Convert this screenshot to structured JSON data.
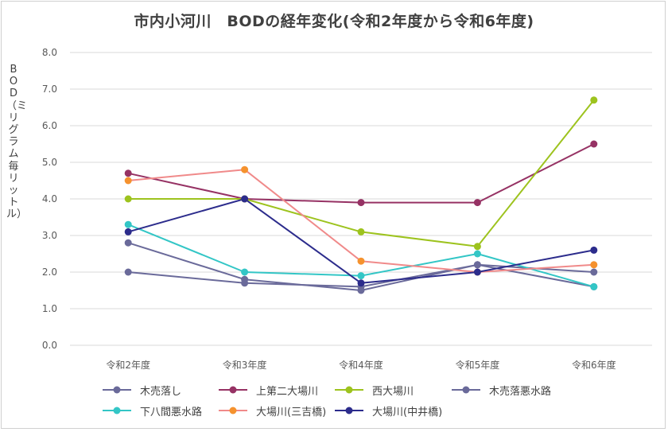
{
  "chart_data": {
    "type": "line",
    "title": "市内小河川　BODの経年変化(令和2年度から令和6年度)",
    "ylabel": "BOD（ミリグラム毎リットル）",
    "xlabel": "",
    "categories": [
      "令和2年度",
      "令和3年度",
      "令和4年度",
      "令和5年度",
      "令和6年度"
    ],
    "ylim": [
      0,
      8
    ],
    "yticks": [
      "0.0",
      "1.0",
      "2.0",
      "3.0",
      "4.0",
      "5.0",
      "6.0",
      "7.0",
      "8.0"
    ],
    "grid": true,
    "legend_position": "bottom",
    "series": [
      {
        "name": "木売落し",
        "color": "#6a6a9a",
        "values": [
          2.0,
          1.7,
          1.6,
          2.2,
          2.0
        ]
      },
      {
        "name": "上第二大場川",
        "color": "#963264",
        "values": [
          4.7,
          4.0,
          3.9,
          3.9,
          5.5
        ]
      },
      {
        "name": "西大場川",
        "color": "#9dc31e",
        "values": [
          4.0,
          4.0,
          3.1,
          2.7,
          6.7
        ]
      },
      {
        "name": "木売落悪水路",
        "color": "#6a6a9a",
        "values": [
          2.8,
          1.8,
          1.5,
          2.2,
          1.6
        ]
      },
      {
        "name": "下八間悪水路",
        "color": "#33c6c6",
        "values": [
          3.3,
          2.0,
          1.9,
          2.5,
          1.6
        ]
      },
      {
        "name": "大場川(三吉橋)",
        "color": "#f08a8a",
        "marker_color": "#f5922e",
        "values": [
          4.5,
          4.8,
          2.3,
          2.0,
          2.2
        ]
      },
      {
        "name": "大場川(中井橋)",
        "color": "#2c2c8c",
        "values": [
          3.1,
          4.0,
          1.7,
          2.0,
          2.6
        ]
      }
    ]
  }
}
